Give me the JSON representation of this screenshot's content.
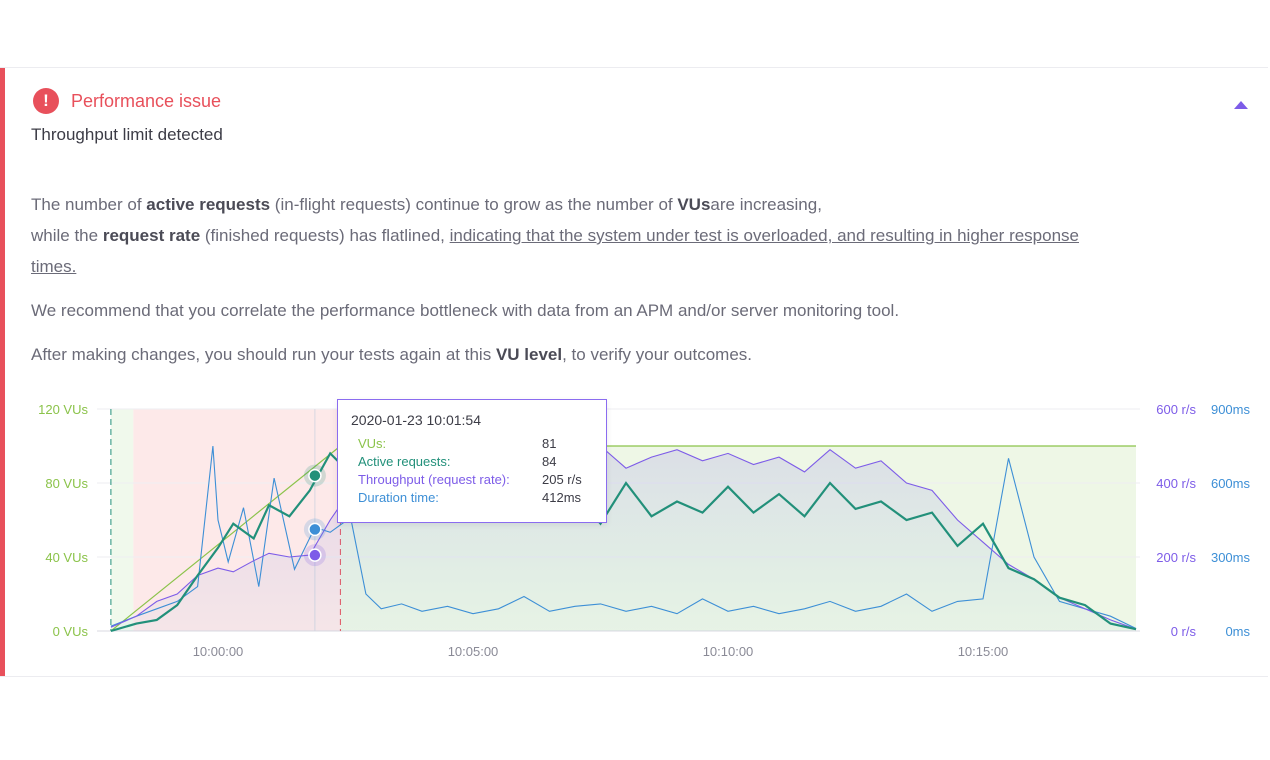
{
  "card": {
    "title": "Performance issue",
    "subtitle": "Throughput limit detected",
    "p1_a": "The number of ",
    "p1_b": "active requests",
    "p1_c": " (in-flight requests) continue to grow as the number of ",
    "p1_d": "VUs",
    "p1_e": "are increasing,",
    "p2_a": "while the ",
    "p2_b": "request rate",
    "p2_c": " (finished requests) has flatlined, ",
    "p2_link": "indicating that the system under test is overloaded, and resulting in higher response",
    "p3_link": "times.",
    "p4": "We recommend that you correlate the performance bottleneck with data from an APM and/or server monitoring tool.",
    "p5_a": "After making changes, you should run your tests again at this ",
    "p5_b": "VU level",
    "p5_c": ", to verify your outcomes."
  },
  "colors": {
    "danger": "#e8505b",
    "vus": "#8bc34a",
    "active": "#22907a",
    "throughput": "#7d5ce8",
    "duration": "#3d8fd6"
  },
  "tooltip": {
    "time": "2020-01-23 10:01:54",
    "rows": [
      {
        "label": "VUs:",
        "value": "81"
      },
      {
        "label": "Active requests:",
        "value": "84"
      },
      {
        "label": "Throughput (request rate):",
        "value": "205 r/s"
      },
      {
        "label": "Duration time:",
        "value": "412ms"
      }
    ]
  },
  "chart_data": {
    "type": "line",
    "x_ticks": [
      "10:00:00",
      "10:05:00",
      "10:10:00",
      "10:15:00"
    ],
    "y_left_ticks": [
      "0 VUs",
      "40 VUs",
      "80 VUs",
      "120 VUs"
    ],
    "y_right1_ticks": [
      "0 r/s",
      "200 r/s",
      "400 r/s",
      "600 r/s"
    ],
    "y_right2_ticks": [
      "0ms",
      "300ms",
      "600ms",
      "900ms"
    ],
    "y_left_range": [
      0,
      120
    ],
    "x_range_minutes": [
      -2.1,
      18.2
    ],
    "vus": {
      "x_minutes": [
        -2.1,
        2.4,
        18.0
      ],
      "values": [
        0,
        100,
        100
      ]
    },
    "active_requests": {
      "x_minutes": [
        -2.1,
        -1.6,
        -1.2,
        -0.8,
        -0.4,
        0.0,
        0.3,
        0.7,
        1.0,
        1.4,
        1.8,
        2.2,
        2.6,
        3.0,
        3.5,
        4.0,
        4.5,
        5.0,
        5.5,
        6.0,
        6.5,
        7.0,
        7.5,
        8.0,
        8.5,
        9.0,
        9.5,
        10.0,
        10.5,
        11.0,
        11.5,
        12.0,
        12.5,
        13.0,
        13.5,
        14.0,
        14.5,
        15.0,
        15.5,
        16.0,
        16.5,
        17.0,
        17.5,
        18.0
      ],
      "values": [
        0,
        4,
        6,
        14,
        30,
        45,
        58,
        50,
        68,
        62,
        76,
        96,
        85,
        72,
        66,
        60,
        63,
        70,
        62,
        66,
        60,
        74,
        58,
        80,
        62,
        70,
        64,
        78,
        64,
        74,
        62,
        80,
        66,
        70,
        60,
        64,
        46,
        58,
        34,
        28,
        18,
        14,
        4,
        1
      ]
    },
    "throughput_rps": {
      "x_minutes": [
        -2.1,
        -1.6,
        -1.2,
        -0.8,
        -0.4,
        0.0,
        0.3,
        0.7,
        1.0,
        1.4,
        1.8,
        2.2,
        2.6,
        3.0,
        3.5,
        4.0,
        4.5,
        5.0,
        5.5,
        6.0,
        6.5,
        7.0,
        7.5,
        8.0,
        8.5,
        9.0,
        9.5,
        10.0,
        10.5,
        11.0,
        11.5,
        12.0,
        12.5,
        13.0,
        13.5,
        14.0,
        14.5,
        15.0,
        15.5,
        16.0,
        16.5,
        17.0,
        17.5,
        18.0
      ],
      "values": [
        10,
        40,
        80,
        100,
        150,
        170,
        160,
        190,
        210,
        200,
        205,
        300,
        380,
        420,
        410,
        450,
        480,
        440,
        470,
        430,
        480,
        460,
        500,
        440,
        470,
        490,
        460,
        480,
        450,
        470,
        430,
        490,
        440,
        460,
        400,
        380,
        300,
        240,
        180,
        140,
        90,
        60,
        30,
        5
      ]
    },
    "duration_ms": {
      "x_minutes": [
        -2.1,
        -1.6,
        -1.2,
        -0.8,
        -0.4,
        -0.1,
        0.0,
        0.2,
        0.5,
        0.8,
        1.1,
        1.5,
        1.9,
        2.2,
        2.6,
        2.9,
        3.2,
        3.6,
        4.0,
        4.5,
        5.0,
        5.5,
        6.0,
        6.5,
        7.0,
        7.5,
        8.0,
        8.5,
        9.0,
        9.5,
        10.0,
        10.5,
        11.0,
        11.5,
        12.0,
        12.5,
        13.0,
        13.5,
        14.0,
        14.5,
        15.0,
        15.5,
        16.0,
        16.5,
        17.0,
        17.5,
        18.0
      ],
      "values": [
        20,
        60,
        90,
        120,
        180,
        750,
        450,
        280,
        500,
        180,
        620,
        250,
        420,
        400,
        460,
        150,
        90,
        110,
        80,
        100,
        70,
        90,
        140,
        80,
        100,
        110,
        80,
        100,
        70,
        130,
        80,
        100,
        70,
        90,
        120,
        80,
        100,
        150,
        80,
        120,
        130,
        700,
        300,
        120,
        90,
        60,
        10
      ]
    }
  }
}
